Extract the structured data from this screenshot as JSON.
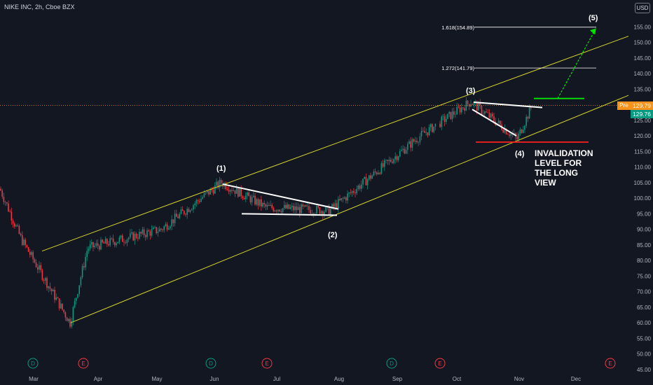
{
  "header": {
    "title": "NIKE INC, 2h, Cboe BZX",
    "currency": "USD"
  },
  "tags": {
    "pre_label": "Pre",
    "last_price": "129.79",
    "prev_price": "129.76"
  },
  "annotations": {
    "wave1": "(1)",
    "wave2": "(2)",
    "wave3": "(3)",
    "wave4": "(4)",
    "wave5": "(5)",
    "fib_1618": "1.618(154.89)",
    "fib_1272": "1.272(141.79)",
    "invalidation": "INVALIDATION\nLEVEL FOR\nTHE LONG\nVIEW"
  },
  "chart_data": {
    "type": "candlestick",
    "title": "NIKE INC, 2h, Cboe BZX",
    "ylim": [
      45,
      160
    ],
    "y_ticks": [
      45,
      50,
      55,
      60,
      65,
      70,
      75,
      80,
      85,
      90,
      95,
      100,
      105,
      110,
      115,
      120,
      125,
      130,
      135,
      140,
      145,
      150,
      155
    ],
    "x_ticks": [
      "Mar",
      "Apr",
      "May",
      "Jun",
      "Jul",
      "Aug",
      "Sep",
      "Oct",
      "Nov",
      "Dec"
    ],
    "grid": false,
    "current_price": 129.79,
    "price_path": [
      {
        "t": "Mar",
        "price": 103
      },
      {
        "t": "Mar",
        "price": 87
      },
      {
        "t": "Mar",
        "price": 60
      },
      {
        "t": "Apr",
        "price": 84
      },
      {
        "t": "May",
        "price": 90
      },
      {
        "t": "Jun",
        "price": 105
      },
      {
        "t": "Jul",
        "price": 97
      },
      {
        "t": "Aug",
        "price": 96
      },
      {
        "t": "Sep",
        "price": 120
      },
      {
        "t": "Oct",
        "price": 131
      },
      {
        "t": "Nov",
        "price": 119
      },
      {
        "t": "Nov",
        "price": 130
      }
    ],
    "waves": [
      {
        "label": "(1)",
        "price": 105
      },
      {
        "label": "(2)",
        "price": 95
      },
      {
        "label": "(3)",
        "price": 131
      },
      {
        "label": "(4)",
        "price": 119
      },
      {
        "label": "(5)",
        "price": 154.89
      }
    ],
    "levels": [
      {
        "label": "1.618(154.89)",
        "value": 154.89,
        "color": "#ffffff"
      },
      {
        "label": "1.272(141.79)",
        "value": 141.79,
        "color": "#ffffff"
      },
      {
        "label": "",
        "value": 132,
        "color": "#00e600"
      },
      {
        "label": "",
        "value": 118,
        "color": "#ff1f1f"
      }
    ],
    "channel_color": "#d4d42a",
    "events": [
      "D",
      "E",
      "D",
      "E",
      "D",
      "E",
      "E"
    ],
    "event_colors": {
      "D": "#089981",
      "E": "#f23645"
    }
  }
}
